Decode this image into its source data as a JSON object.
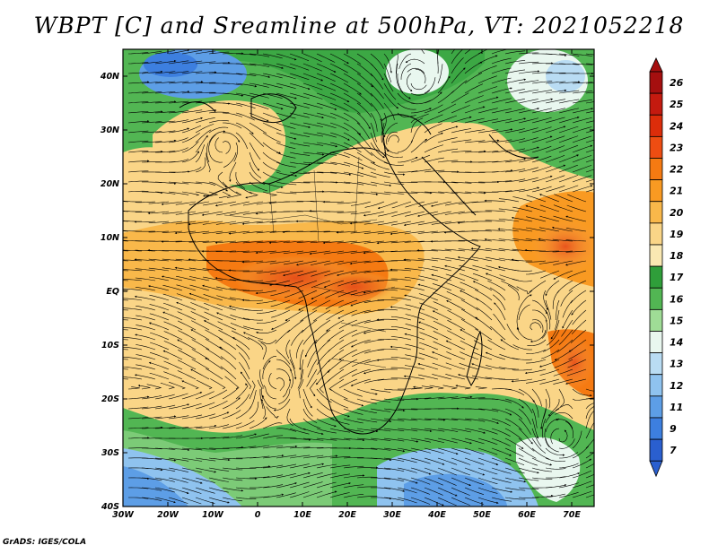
{
  "title": "WBPT [C] and Sreamline at 500hPa, VT: 2021052218",
  "footer": "GrADS: IGES/COLA",
  "map": {
    "lon_ticks": [
      "30W",
      "20W",
      "10W",
      "0",
      "10E",
      "20E",
      "30E",
      "40E",
      "50E",
      "60E",
      "70E"
    ],
    "lat_ticks": [
      "40N",
      "30N",
      "20N",
      "10N",
      "EQ",
      "10S",
      "20S",
      "30S",
      "40S"
    ],
    "lon_range": [
      -30,
      75
    ],
    "lat_range": [
      -40,
      45
    ]
  },
  "colorbar": {
    "labels": [
      "26",
      "25",
      "24",
      "23",
      "22",
      "21",
      "20",
      "19",
      "18",
      "17",
      "16",
      "15",
      "14",
      "13",
      "12",
      "11",
      "9",
      "7"
    ],
    "colors": [
      "#a50f0f",
      "#c41a0f",
      "#dc2d0a",
      "#ee4d12",
      "#f57a12",
      "#f99a22",
      "#f9b84a",
      "#fad587",
      "#fae8b2",
      "#2f9e3a",
      "#52b653",
      "#9fdc96",
      "#e9f7ef",
      "#b9dcf3",
      "#8fc3ef",
      "#5d9ee6",
      "#3d7fdf",
      "#2a5fcf"
    ]
  }
}
